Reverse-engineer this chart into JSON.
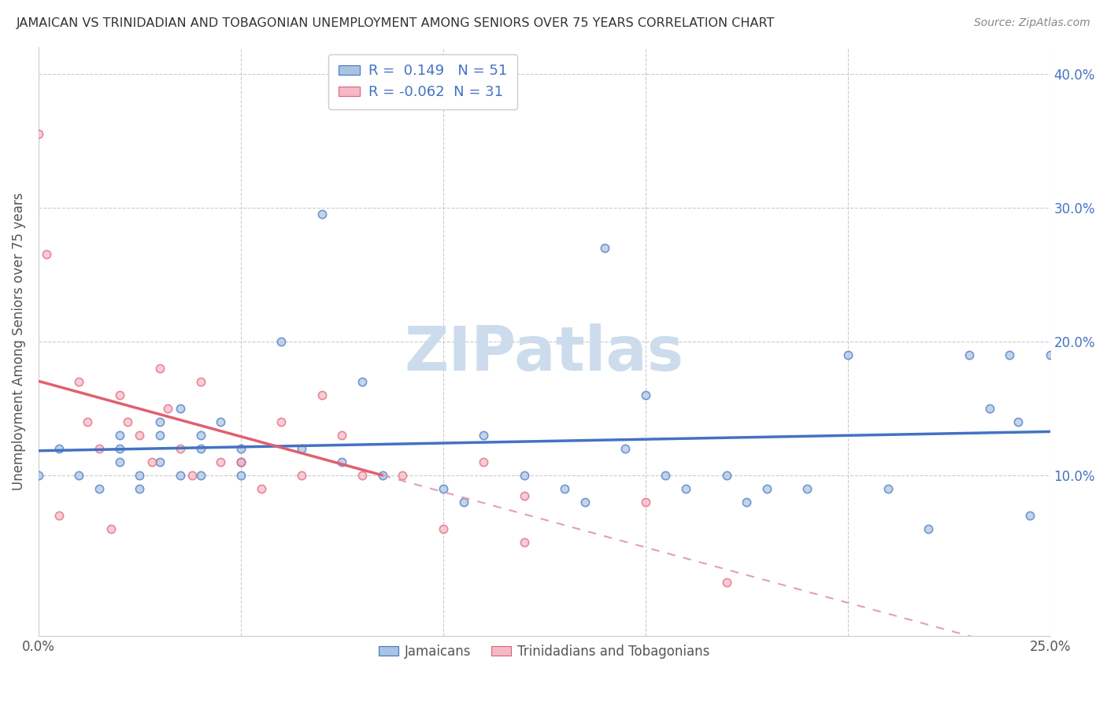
{
  "title": "JAMAICAN VS TRINIDADIAN AND TOBAGONIAN UNEMPLOYMENT AMONG SENIORS OVER 75 YEARS CORRELATION CHART",
  "source": "Source: ZipAtlas.com",
  "ylabel_label": "Unemployment Among Seniors over 75 years",
  "xlim": [
    0.0,
    0.25
  ],
  "ylim": [
    -0.02,
    0.42
  ],
  "xticks": [
    0.0,
    0.05,
    0.1,
    0.15,
    0.2,
    0.25
  ],
  "xticklabels": [
    "0.0%",
    "",
    "",
    "",
    "",
    "25.0%"
  ],
  "ytick_vals": [
    0.0,
    0.1,
    0.2,
    0.3,
    0.4
  ],
  "yticklabels_right": [
    "",
    "10.0%",
    "20.0%",
    "30.0%",
    "40.0%"
  ],
  "blue_color": "#a8c4e0",
  "pink_color": "#f4b8c8",
  "blue_line_color": "#4472c4",
  "pink_solid_color": "#e06070",
  "pink_dash_color": "#e0a0b0",
  "R_blue": 0.149,
  "N_blue": 51,
  "R_pink": -0.062,
  "N_pink": 31,
  "watermark": "ZIPatlas",
  "watermark_color": "#ccdcec",
  "legend_labels": [
    "Jamaicans",
    "Trinidadians and Tobagonians"
  ],
  "blue_scatter_x": [
    0.0,
    0.005,
    0.01,
    0.015,
    0.02,
    0.02,
    0.02,
    0.025,
    0.025,
    0.03,
    0.03,
    0.03,
    0.035,
    0.035,
    0.04,
    0.04,
    0.04,
    0.045,
    0.05,
    0.05,
    0.05,
    0.06,
    0.065,
    0.07,
    0.075,
    0.08,
    0.085,
    0.1,
    0.105,
    0.11,
    0.12,
    0.13,
    0.135,
    0.14,
    0.145,
    0.15,
    0.155,
    0.16,
    0.17,
    0.175,
    0.18,
    0.19,
    0.2,
    0.21,
    0.22,
    0.23,
    0.235,
    0.24,
    0.242,
    0.245,
    0.25
  ],
  "blue_scatter_y": [
    0.1,
    0.12,
    0.1,
    0.09,
    0.13,
    0.12,
    0.11,
    0.1,
    0.09,
    0.14,
    0.13,
    0.11,
    0.1,
    0.15,
    0.13,
    0.12,
    0.1,
    0.14,
    0.11,
    0.1,
    0.12,
    0.2,
    0.12,
    0.295,
    0.11,
    0.17,
    0.1,
    0.09,
    0.08,
    0.13,
    0.1,
    0.09,
    0.08,
    0.27,
    0.12,
    0.16,
    0.1,
    0.09,
    0.1,
    0.08,
    0.09,
    0.09,
    0.19,
    0.09,
    0.06,
    0.19,
    0.15,
    0.19,
    0.14,
    0.07,
    0.19
  ],
  "pink_scatter_x": [
    0.0,
    0.002,
    0.005,
    0.01,
    0.012,
    0.015,
    0.018,
    0.02,
    0.022,
    0.025,
    0.028,
    0.03,
    0.032,
    0.035,
    0.038,
    0.04,
    0.045,
    0.05,
    0.055,
    0.06,
    0.065,
    0.07,
    0.075,
    0.08,
    0.09,
    0.1,
    0.11,
    0.12,
    0.15,
    0.17,
    0.12
  ],
  "pink_scatter_y": [
    0.355,
    0.265,
    0.07,
    0.17,
    0.14,
    0.12,
    0.06,
    0.16,
    0.14,
    0.13,
    0.11,
    0.18,
    0.15,
    0.12,
    0.1,
    0.17,
    0.11,
    0.11,
    0.09,
    0.14,
    0.1,
    0.16,
    0.13,
    0.1,
    0.1,
    0.06,
    0.11,
    0.05,
    0.08,
    0.02,
    0.085
  ],
  "blue_marker_size": 55,
  "pink_marker_size": 55
}
